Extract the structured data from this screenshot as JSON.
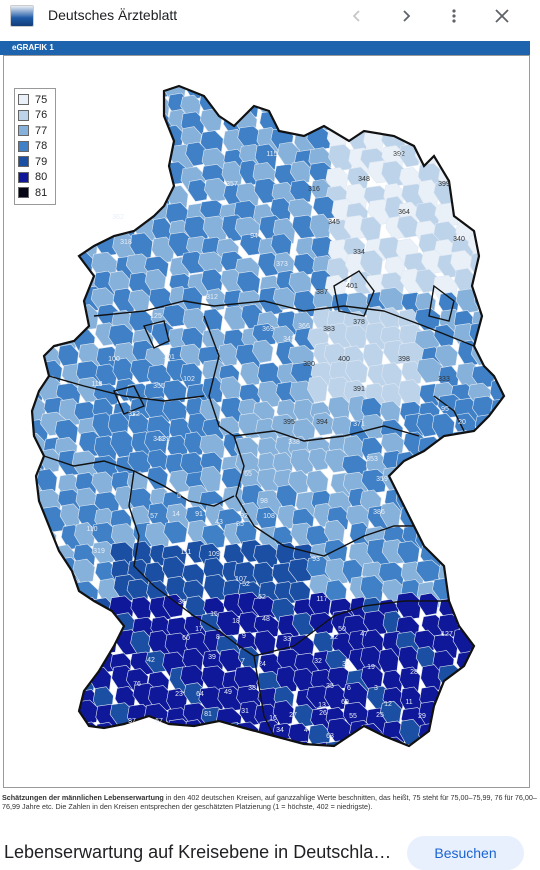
{
  "app": {
    "title": "Deutsches Ärzteblatt"
  },
  "toolbar": {
    "back_icon": "chevron-left-icon",
    "forward_icon": "chevron-right-icon",
    "menu_icon": "more-vert-icon",
    "close_icon": "close-icon"
  },
  "figure_header": "eGRAFIK 1",
  "legend": [
    {
      "label": "75",
      "color": "#e9f0f8"
    },
    {
      "label": "76",
      "color": "#bcd3ea"
    },
    {
      "label": "77",
      "color": "#86b1da"
    },
    {
      "label": "78",
      "color": "#3f80c6"
    },
    {
      "label": "79",
      "color": "#1b4fa3"
    },
    {
      "label": "80",
      "color": "#10189a"
    },
    {
      "label": "81",
      "color": "#050515"
    }
  ],
  "map_labels": [
    {
      "t": "392",
      "c": 0
    },
    {
      "t": "399",
      "c": 0
    },
    {
      "t": "348",
      "c": 1
    },
    {
      "t": "316",
      "c": 1
    },
    {
      "t": "345",
      "c": 1
    },
    {
      "t": "364",
      "c": 1
    },
    {
      "t": "340",
      "c": 1
    },
    {
      "t": "334",
      "c": 1
    },
    {
      "t": "357",
      "c": 3
    },
    {
      "t": "115",
      "c": 3
    },
    {
      "t": "362",
      "c": 3
    },
    {
      "t": "318",
      "c": 3
    },
    {
      "t": "94",
      "c": 4
    },
    {
      "t": "373",
      "c": 3
    },
    {
      "t": "387",
      "c": 1
    },
    {
      "t": "401",
      "c": 0
    },
    {
      "t": "312",
      "c": 2
    },
    {
      "t": "366",
      "c": 2
    },
    {
      "t": "383",
      "c": 1
    },
    {
      "t": "378",
      "c": 1
    },
    {
      "t": "125",
      "c": 3
    },
    {
      "t": "369",
      "c": 2
    },
    {
      "t": "343",
      "c": 2
    },
    {
      "t": "390",
      "c": 1
    },
    {
      "t": "400",
      "c": 0
    },
    {
      "t": "398",
      "c": 0
    },
    {
      "t": "100",
      "c": 3
    },
    {
      "t": "101",
      "c": 3
    },
    {
      "t": "355",
      "c": 2
    },
    {
      "t": "102",
      "c": 3
    },
    {
      "t": "391",
      "c": 1
    },
    {
      "t": "333",
      "c": 1
    },
    {
      "t": "322",
      "c": 2
    },
    {
      "t": "118",
      "c": 3
    },
    {
      "t": "331",
      "c": 2
    },
    {
      "t": "395",
      "c": 0
    },
    {
      "t": "394",
      "c": 0
    },
    {
      "t": "95",
      "c": 4
    },
    {
      "t": "20",
      "c": 5
    },
    {
      "t": "371",
      "c": 2
    },
    {
      "t": "341",
      "c": 2
    },
    {
      "t": "338",
      "c": 2
    },
    {
      "t": "353",
      "c": 2
    },
    {
      "t": "359",
      "c": 2
    },
    {
      "t": "65",
      "c": 4
    },
    {
      "t": "5",
      "c": 5
    },
    {
      "t": "98",
      "c": 4
    },
    {
      "t": "92",
      "c": 4
    },
    {
      "t": "57",
      "c": 4
    },
    {
      "t": "14",
      "c": 5
    },
    {
      "t": "91",
      "c": 4
    },
    {
      "t": "43",
      "c": 4
    },
    {
      "t": "85",
      "c": 4
    },
    {
      "t": "108",
      "c": 4
    },
    {
      "t": "386",
      "c": 2
    },
    {
      "t": "110",
      "c": 3
    },
    {
      "t": "319",
      "c": 2
    },
    {
      "t": "111",
      "c": 3
    },
    {
      "t": "109",
      "c": 3
    },
    {
      "t": "107",
      "c": 4
    },
    {
      "t": "93",
      "c": 3
    },
    {
      "t": "117",
      "c": 3
    },
    {
      "t": "52",
      "c": 4
    },
    {
      "t": "62",
      "c": 4
    },
    {
      "t": "36",
      "c": 5
    },
    {
      "t": "15",
      "c": 5
    },
    {
      "t": "18",
      "c": 5
    },
    {
      "t": "48",
      "c": 4
    },
    {
      "t": "17",
      "c": 5
    },
    {
      "t": "50",
      "c": 5
    },
    {
      "t": "127",
      "c": 3
    },
    {
      "t": "60",
      "c": 4
    },
    {
      "t": "8",
      "c": 5
    },
    {
      "t": "9",
      "c": 5
    },
    {
      "t": "33",
      "c": 5
    },
    {
      "t": "22",
      "c": 4
    },
    {
      "t": "47",
      "c": 4
    },
    {
      "t": "42",
      "c": 4
    },
    {
      "t": "39",
      "c": 4
    },
    {
      "t": "7",
      "c": 5
    },
    {
      "t": "24",
      "c": 5
    },
    {
      "t": "32",
      "c": 5
    },
    {
      "t": "30",
      "c": 5
    },
    {
      "t": "19",
      "c": 5
    },
    {
      "t": "28",
      "c": 5
    },
    {
      "t": "76",
      "c": 3
    },
    {
      "t": "23",
      "c": 5
    },
    {
      "t": "64",
      "c": 4
    },
    {
      "t": "49",
      "c": 4
    },
    {
      "t": "38",
      "c": 4
    },
    {
      "t": "35",
      "c": 5
    },
    {
      "t": "6",
      "c": 5
    },
    {
      "t": "3",
      "c": 6
    },
    {
      "t": "11",
      "c": 5
    },
    {
      "t": "81",
      "c": 4
    },
    {
      "t": "31",
      "c": 5
    },
    {
      "t": "27",
      "c": 5
    },
    {
      "t": "26",
      "c": 5
    },
    {
      "t": "55",
      "c": 4
    },
    {
      "t": "25",
      "c": 5
    },
    {
      "t": "12",
      "c": 5
    },
    {
      "t": "29",
      "c": 5
    },
    {
      "t": "37",
      "c": 4
    },
    {
      "t": "67",
      "c": 4
    },
    {
      "t": "63",
      "c": 4
    },
    {
      "t": "34",
      "c": 5
    },
    {
      "t": "16",
      "c": 4
    },
    {
      "t": "69",
      "c": 4
    },
    {
      "t": "13",
      "c": 5
    },
    {
      "t": "4",
      "c": 5
    },
    {
      "t": "10",
      "c": 5
    }
  ],
  "caption": {
    "bold": "Schätzungen der männlichen Lebenserwartung",
    "text": " in den 402 deutschen Kreisen, auf ganzzahlige Werte beschnitten, das heißt, 75 steht für 75,00–75,99, 76 für 76,00–76,99 Jahre etc. Die Zahlen in den Kreisen entsprechen der geschätzten Platzierung (1 = höchste, 402 = niedrigste)."
  },
  "bottom": {
    "title": "Lebenserwartung auf Kreisebene in Deutschla…",
    "button": "Besuchen"
  }
}
